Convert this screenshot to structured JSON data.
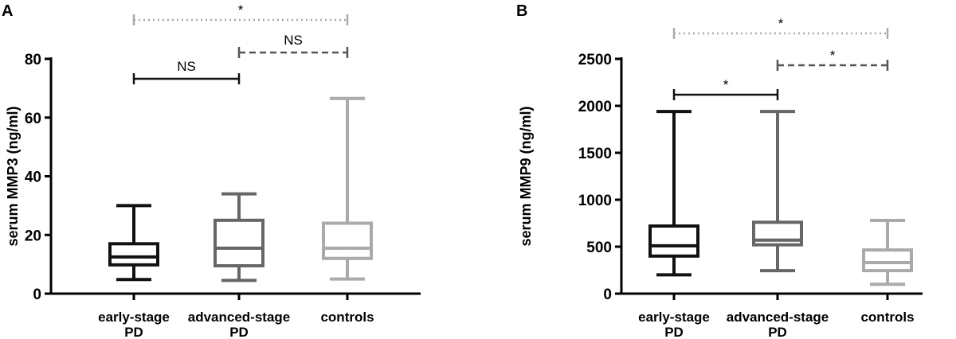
{
  "chart_data": [
    {
      "type": "boxplot",
      "panel": "A",
      "ylabel": "serum MMP3 (ng/ml)",
      "ylim": [
        0,
        80
      ],
      "yticks": [
        0,
        20,
        40,
        60,
        80
      ],
      "categories": [
        {
          "line1": "early-stage",
          "line2": "PD"
        },
        {
          "line1": "advanced-stage",
          "line2": "PD"
        },
        {
          "line1": "controls",
          "line2": ""
        }
      ],
      "boxes": [
        {
          "min": 4.8,
          "q1": 9.8,
          "median": 12.5,
          "q3": 17,
          "max": 30,
          "color": "#111111"
        },
        {
          "min": 4.5,
          "q1": 9.5,
          "median": 15.5,
          "q3": 25,
          "max": 34,
          "color": "#666666"
        },
        {
          "min": 5,
          "q1": 12,
          "median": 15.5,
          "q3": 24,
          "max": 66.5,
          "color": "#aaaaaa"
        }
      ],
      "comparisons": [
        {
          "from": 0,
          "to": 1,
          "label": "NS",
          "style": "solid",
          "color": "#111111",
          "level": 0
        },
        {
          "from": 1,
          "to": 2,
          "label": "NS",
          "style": "dashed",
          "color": "#555555",
          "level": 1
        },
        {
          "from": 0,
          "to": 2,
          "label": "*",
          "style": "dotted",
          "color": "#aaaaaa",
          "level": 2
        }
      ]
    },
    {
      "type": "boxplot",
      "panel": "B",
      "ylabel": "serum MMP9 (ng/ml)",
      "ylim": [
        0,
        2500
      ],
      "yticks": [
        0,
        500,
        1000,
        1500,
        2000,
        2500
      ],
      "categories": [
        {
          "line1": "early-stage",
          "line2": "PD"
        },
        {
          "line1": "advanced-stage",
          "line2": "PD"
        },
        {
          "line1": "controls",
          "line2": ""
        }
      ],
      "boxes": [
        {
          "min": 200,
          "q1": 400,
          "median": 510,
          "q3": 720,
          "max": 1940,
          "color": "#111111"
        },
        {
          "min": 245,
          "q1": 520,
          "median": 570,
          "q3": 760,
          "max": 1940,
          "color": "#666666"
        },
        {
          "min": 100,
          "q1": 245,
          "median": 330,
          "q3": 465,
          "max": 780,
          "color": "#aaaaaa"
        }
      ],
      "comparisons": [
        {
          "from": 0,
          "to": 1,
          "label": "*",
          "style": "solid",
          "color": "#111111",
          "level": 0
        },
        {
          "from": 1,
          "to": 2,
          "label": "*",
          "style": "dashed",
          "color": "#555555",
          "level": 1
        },
        {
          "from": 0,
          "to": 2,
          "label": "*",
          "style": "dotted",
          "color": "#aaaaaa",
          "level": 2
        }
      ]
    }
  ]
}
